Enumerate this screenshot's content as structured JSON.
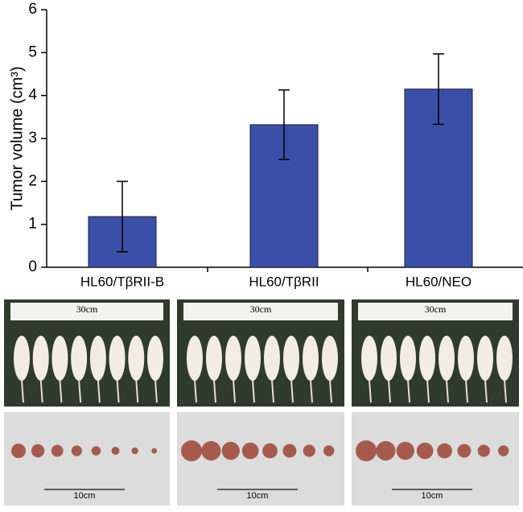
{
  "chart_data": {
    "type": "bar",
    "ylabel": "Tumor volume (cm³)",
    "categories": [
      "HL60/TβRII-B",
      "HL60/TβRII",
      "HL60/NEO"
    ],
    "values": [
      1.18,
      3.32,
      4.15
    ],
    "errors": [
      0.82,
      0.81,
      0.82
    ],
    "color": "#3a50a8",
    "ylim": [
      0,
      6
    ],
    "yticks": [
      0,
      1,
      2,
      3,
      4,
      5,
      6
    ]
  },
  "photos": {
    "mice_labels": [
      "30cm",
      "30cm",
      "30cm"
    ],
    "tumor_labels": [
      "10cm",
      "10cm",
      "10cm"
    ]
  }
}
